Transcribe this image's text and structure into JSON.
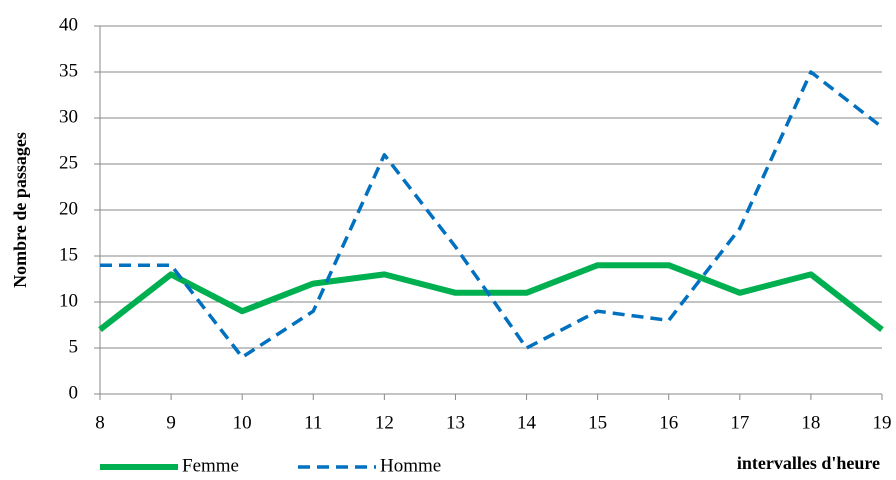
{
  "chart_data": {
    "type": "line",
    "y_label": "Nombre de passages",
    "x_label": "intervalles d'heure",
    "x": [
      8,
      9,
      10,
      11,
      12,
      13,
      14,
      15,
      16,
      17,
      18,
      19
    ],
    "xlim": [
      8,
      19
    ],
    "xticks": [
      8,
      9,
      10,
      11,
      12,
      13,
      14,
      15,
      16,
      17,
      18,
      19
    ],
    "ylim": [
      0,
      40
    ],
    "yticks": [
      0,
      5,
      10,
      15,
      20,
      25,
      30,
      35,
      40
    ],
    "grid": true,
    "legend": "bottom-left",
    "series": [
      {
        "name": "Femme",
        "color": "#00b050",
        "dashed": false,
        "values": [
          7,
          13,
          9,
          12,
          13,
          11,
          11,
          14,
          14,
          11,
          13,
          7
        ]
      },
      {
        "name": "Homme",
        "color": "#0070c0",
        "dashed": true,
        "values": [
          14,
          14,
          4,
          9,
          26,
          16,
          5,
          9,
          8,
          18,
          35,
          29
        ]
      }
    ]
  }
}
